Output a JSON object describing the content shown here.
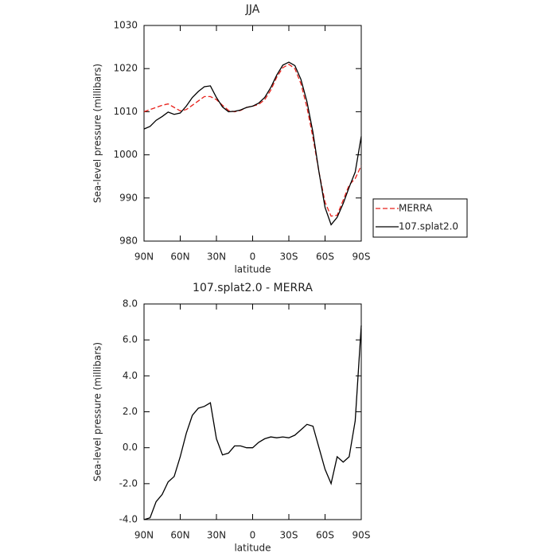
{
  "chart_data": [
    {
      "type": "line",
      "title": "JJA",
      "x_label": "latitude",
      "y_label": "Sea-level pressure (millibars)",
      "x": [
        90,
        85,
        80,
        75,
        70,
        65,
        60,
        55,
        50,
        45,
        40,
        35,
        30,
        25,
        20,
        15,
        10,
        5,
        0,
        -5,
        -10,
        -15,
        -20,
        -25,
        -30,
        -35,
        -40,
        -45,
        -50,
        -55,
        -60,
        -65,
        -70,
        -75,
        -80,
        -85,
        -90
      ],
      "xlim": [
        90,
        -90
      ],
      "xticks": [
        {
          "value": 90,
          "label": "90N"
        },
        {
          "value": 60,
          "label": "60N"
        },
        {
          "value": 30,
          "label": "30N"
        },
        0,
        {
          "value": -30,
          "label": "30S"
        },
        {
          "value": -60,
          "label": "60S"
        },
        {
          "value": -90,
          "label": "90S"
        }
      ],
      "ylim": [
        980,
        1030
      ],
      "yticks": [
        980,
        990,
        1000,
        1010,
        1020,
        1030
      ],
      "legend": "outside-right",
      "series": [
        {
          "name": "MERRA",
          "color": "#e8211b",
          "dash": true,
          "values": [
            1010,
            1010.5,
            1011,
            1011.5,
            1011.8,
            1011,
            1010.2,
            1010.5,
            1011.5,
            1012.5,
            1013.5,
            1013.5,
            1012.8,
            1011.5,
            1010.3,
            1010,
            1010.3,
            1011,
            1011.3,
            1011.7,
            1012.8,
            1015,
            1018,
            1020.2,
            1021,
            1020,
            1016.5,
            1011,
            1004,
            996,
            989,
            985.8,
            986,
            989.5,
            993,
            994.5,
            997.5
          ]
        },
        {
          "name": "107.splat2.0",
          "color": "#000000",
          "dash": false,
          "values": [
            1006,
            1006.6,
            1008,
            1008.9,
            1009.9,
            1009.4,
            1009.7,
            1011.3,
            1013.3,
            1014.7,
            1015.8,
            1016,
            1013.3,
            1011.1,
            1010,
            1010.1,
            1010.4,
            1011,
            1011.3,
            1012,
            1013.3,
            1015.6,
            1018.5,
            1020.8,
            1021.5,
            1020.7,
            1017.5,
            1012.3,
            1005.2,
            996,
            987.8,
            983.8,
            985.5,
            988.7,
            992.5,
            996,
            1004.3
          ]
        }
      ]
    },
    {
      "type": "line",
      "title": "107.splat2.0 - MERRA",
      "x_label": "latitude",
      "y_label": "Sea-level pressure (millibars)",
      "x": [
        90,
        85,
        80,
        75,
        70,
        65,
        60,
        55,
        50,
        45,
        40,
        35,
        30,
        25,
        20,
        15,
        10,
        5,
        0,
        -5,
        -10,
        -15,
        -20,
        -25,
        -30,
        -35,
        -40,
        -45,
        -50,
        -55,
        -60,
        -65,
        -70,
        -75,
        -80,
        -85,
        -90
      ],
      "xlim": [
        90,
        -90
      ],
      "xticks": [
        {
          "value": 90,
          "label": "90N"
        },
        {
          "value": 60,
          "label": "60N"
        },
        {
          "value": 30,
          "label": "30N"
        },
        0,
        {
          "value": -30,
          "label": "30S"
        },
        {
          "value": -60,
          "label": "60S"
        },
        {
          "value": -90,
          "label": "90S"
        }
      ],
      "ylim": [
        -4,
        8
      ],
      "yticks": [
        {
          "value": -4,
          "label": "-4.0"
        },
        {
          "value": -2,
          "label": "-2.0"
        },
        {
          "value": 0,
          "label": "0.0"
        },
        {
          "value": 2,
          "label": "2.0"
        },
        {
          "value": 4,
          "label": "4.0"
        },
        {
          "value": 6,
          "label": "6.0"
        },
        {
          "value": 8,
          "label": "8.0"
        }
      ],
      "series": [
        {
          "color": "#000000",
          "dash": false,
          "values": [
            -4,
            -3.9,
            -3,
            -2.6,
            -1.9,
            -1.6,
            -0.5,
            0.8,
            1.8,
            2.2,
            2.3,
            2.5,
            0.5,
            -0.4,
            -0.3,
            0.1,
            0.1,
            0,
            0,
            0.3,
            0.5,
            0.6,
            0.55,
            0.6,
            0.55,
            0.7,
            1.0,
            1.3,
            1.2,
            0,
            -1.2,
            -2.0,
            -0.5,
            -0.8,
            -0.5,
            1.5,
            6.8
          ]
        }
      ]
    }
  ]
}
